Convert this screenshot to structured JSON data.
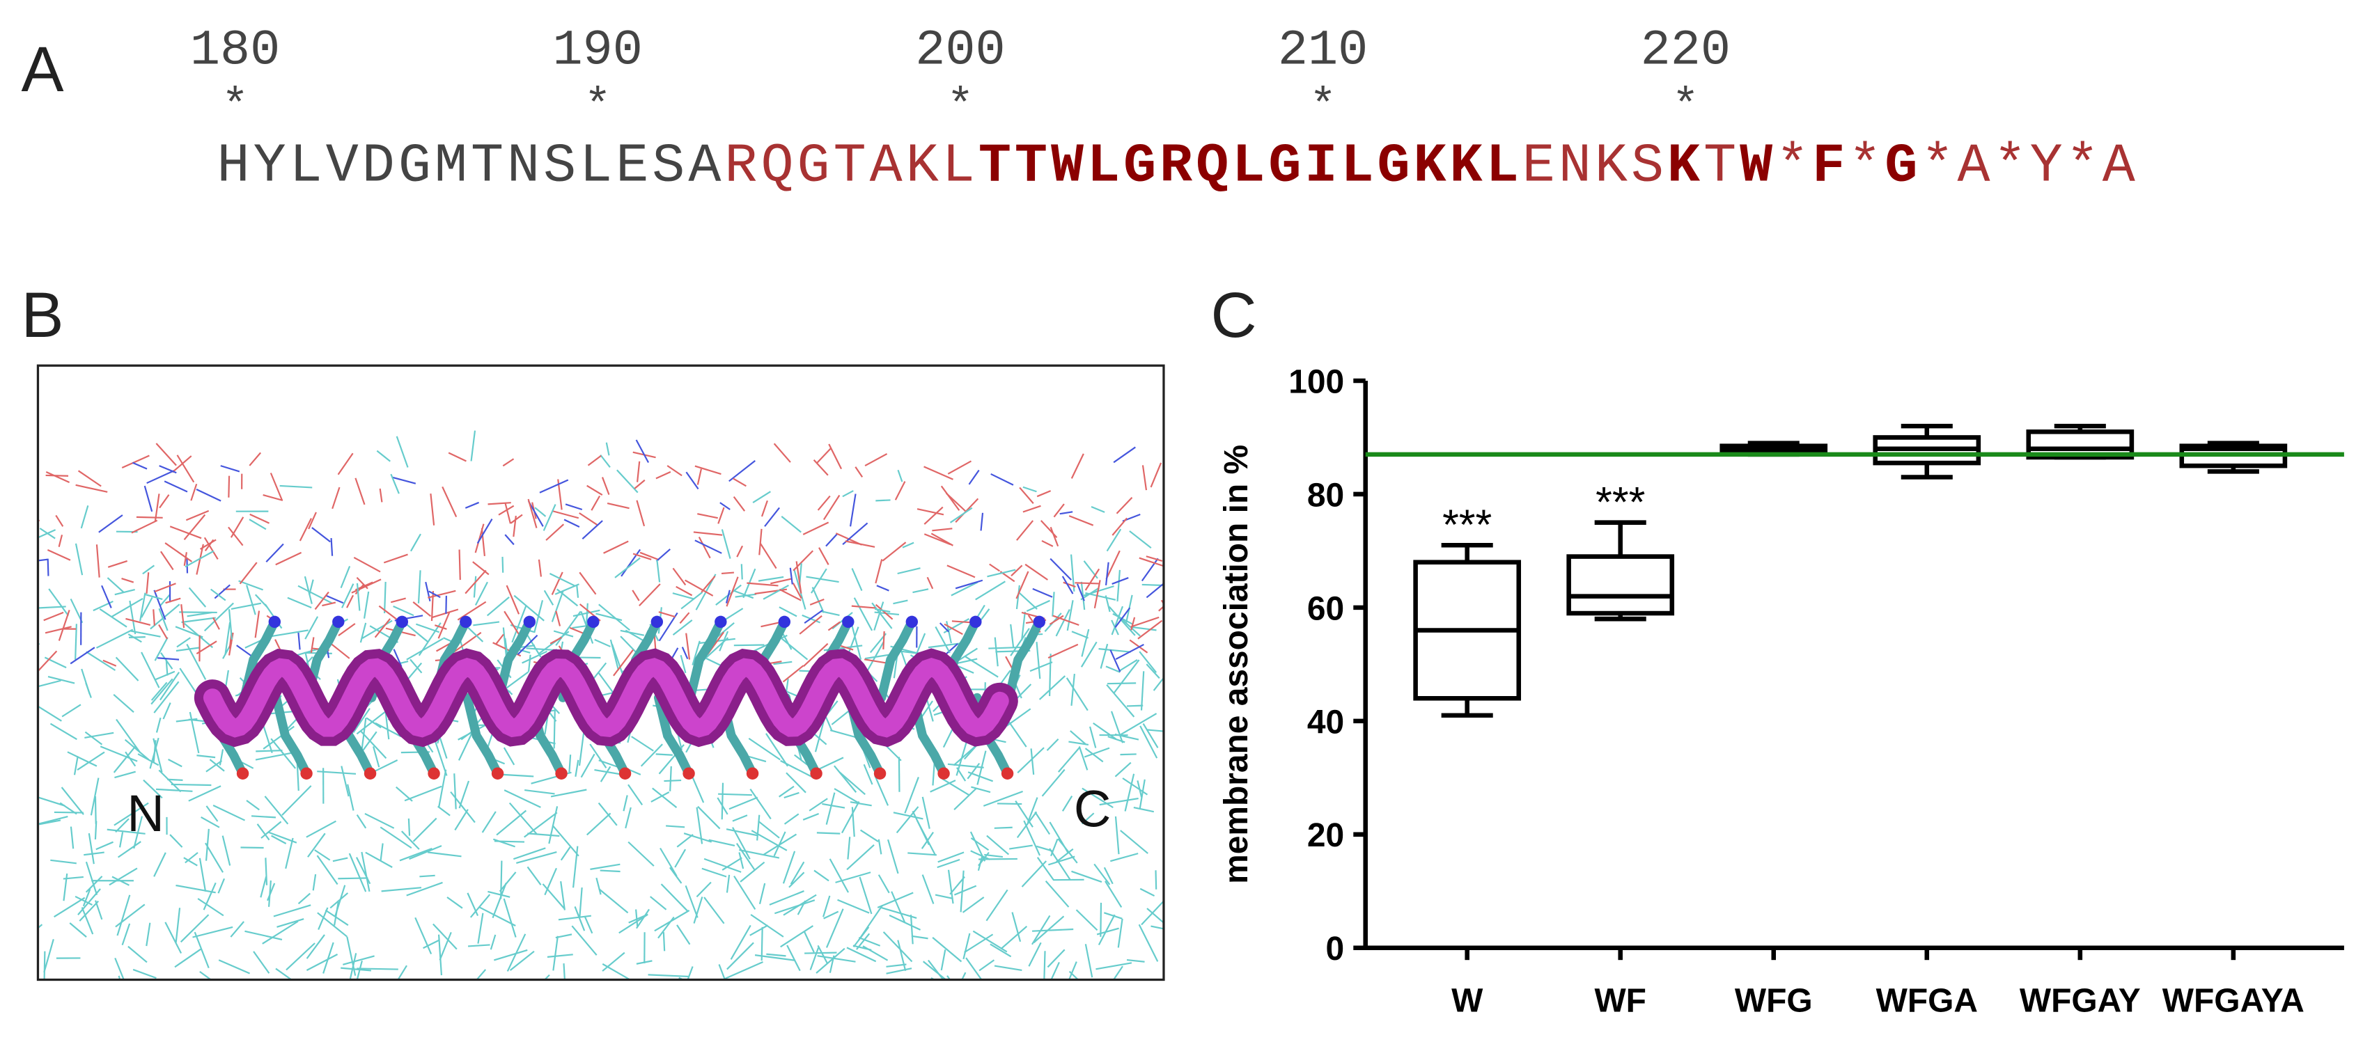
{
  "panel_a": {
    "label": "A",
    "positions": [
      180,
      190,
      200,
      210,
      220
    ],
    "marker": "*",
    "sequence": [
      {
        "text": "HYLVDGMTNSLESA",
        "style": "plain"
      },
      {
        "text": "RQGTAKL",
        "style": "red"
      },
      {
        "text": "TTWLGRQLGILGKKL",
        "style": "bold"
      },
      {
        "text": "ENKS",
        "style": "red"
      },
      {
        "text": "K",
        "style": "bold"
      },
      {
        "text": "T",
        "style": "red"
      },
      {
        "text": "W",
        "style": "bold"
      },
      {
        "text": "*",
        "style": "red"
      },
      {
        "text": "F",
        "style": "bold"
      },
      {
        "text": "*",
        "style": "red"
      },
      {
        "text": "G",
        "style": "bold"
      },
      {
        "text": "*A*Y*A",
        "style": "red"
      }
    ]
  },
  "panel_b": {
    "label": "B",
    "n_label": "N",
    "c_label": "C"
  },
  "panel_c": {
    "label": "C"
  },
  "chart_data": {
    "type": "box",
    "y_label": "membrane association in %",
    "categories": [
      "W",
      "WF",
      "WFG",
      "WFGA",
      "WFGAY",
      "WFGAYA"
    ],
    "series": [
      {
        "min": [
          41,
          58,
          87,
          83,
          86.5,
          84
        ],
        "q1": [
          44,
          59,
          87.5,
          85.5,
          86.5,
          85
        ],
        "median": [
          56,
          62,
          88,
          88,
          88,
          88
        ],
        "q3": [
          68,
          69,
          88.5,
          90,
          91,
          88.5
        ],
        "max": [
          71,
          75,
          89,
          92,
          92,
          89
        ],
        "color": "#000000"
      }
    ],
    "annotations": [
      "***",
      "***",
      null,
      null,
      null,
      null
    ],
    "reference_line": {
      "value": 87,
      "color": "#1a8a1a"
    },
    "ylim": [
      0,
      100
    ],
    "yticks": [
      0,
      20,
      40,
      60,
      80,
      100
    ]
  }
}
